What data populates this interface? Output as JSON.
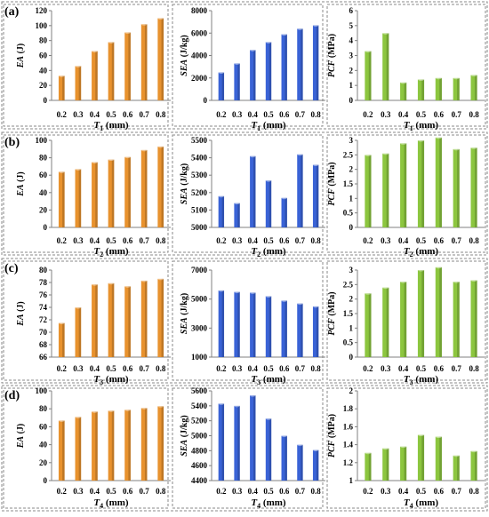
{
  "chart_data": {
    "type": "bar",
    "x_tick_labels": [
      "0.2",
      "0.3",
      "0.4",
      "0.5",
      "0.6",
      "0.7",
      "0.8"
    ],
    "units": {
      "mm": "(mm)",
      "ea": "(J)",
      "sea": "(J/kg)",
      "pcf": "(MPa)"
    },
    "colors": {
      "EA": "#e8922e",
      "SEA": "#3a63d6",
      "PCF": "#8cc63f"
    },
    "rows": [
      {
        "label": "(a)",
        "variable": "T",
        "subscript": "1",
        "charts": [
          {
            "type": "bar",
            "metric": "EA",
            "ylim": [
              0,
              120
            ],
            "ticks": [
              0,
              20,
              40,
              60,
              80,
              100,
              120
            ],
            "values": [
              33,
              46,
              66,
              78,
              91,
              102,
              110
            ]
          },
          {
            "type": "bar",
            "metric": "SEA",
            "ylim": [
              0,
              8000
            ],
            "ticks": [
              0,
              2000,
              4000,
              6000,
              8000
            ],
            "values": [
              2500,
              3300,
              4500,
              5200,
              5900,
              6400,
              6700
            ]
          },
          {
            "type": "bar",
            "metric": "PCF",
            "ylim": [
              0,
              6
            ],
            "ticks": [
              0,
              1,
              2,
              3,
              4,
              5,
              6
            ],
            "values": [
              3.3,
              4.5,
              1.2,
              1.4,
              1.5,
              1.5,
              1.7
            ]
          }
        ]
      },
      {
        "label": "(b)",
        "variable": "T",
        "subscript": "2",
        "charts": [
          {
            "type": "bar",
            "metric": "EA",
            "ylim": [
              0,
              100
            ],
            "ticks": [
              0,
              20,
              40,
              60,
              80,
              100
            ],
            "values": [
              64,
              67,
              75,
              78,
              81,
              89,
              93
            ]
          },
          {
            "type": "bar",
            "metric": "SEA",
            "ylim": [
              5000,
              5500
            ],
            "ticks": [
              5000,
              5100,
              5200,
              5300,
              5400,
              5500
            ],
            "values": [
              5180,
              5140,
              5410,
              5270,
              5170,
              5420,
              5360
            ]
          },
          {
            "type": "bar",
            "metric": "PCF",
            "ylim": [
              0,
              3
            ],
            "ticks": [
              0,
              0.5,
              1,
              1.5,
              2,
              2.5,
              3
            ],
            "tick_labels": [
              "0",
              "0.5",
              "1",
              "1.5",
              "2",
              "2.5",
              "3"
            ],
            "values": [
              2.5,
              2.55,
              2.9,
              3.0,
              3.1,
              2.7,
              2.75
            ]
          }
        ]
      },
      {
        "label": "(c)",
        "variable": "T",
        "subscript": "3",
        "charts": [
          {
            "type": "bar",
            "metric": "EA",
            "ylim": [
              66,
              80
            ],
            "ticks": [
              66,
              68,
              70,
              72,
              74,
              76,
              78,
              80
            ],
            "values": [
              71.5,
              74,
              77.7,
              77.9,
              77.4,
              78.3,
              78.6
            ]
          },
          {
            "type": "bar",
            "metric": "SEA",
            "ylim": [
              1000,
              7000
            ],
            "ticks": [
              1000,
              3000,
              5000,
              7000
            ],
            "values": [
              5600,
              5500,
              5450,
              5200,
              4900,
              4700,
              4500
            ]
          },
          {
            "type": "bar",
            "metric": "PCF",
            "ylim": [
              0,
              3
            ],
            "ticks": [
              0,
              0.5,
              1,
              1.5,
              2,
              2.5,
              3
            ],
            "tick_labels": [
              "0",
              "0.5",
              "1",
              "1.5",
              "2",
              "2.5",
              "3"
            ],
            "values": [
              2.2,
              2.4,
              2.6,
              3.0,
              3.1,
              2.6,
              2.65
            ]
          }
        ]
      },
      {
        "label": "(d)",
        "variable": "T",
        "subscript": "4",
        "charts": [
          {
            "type": "bar",
            "metric": "EA",
            "ylim": [
              0,
              100
            ],
            "ticks": [
              0,
              20,
              40,
              60,
              80,
              100
            ],
            "values": [
              67,
              71,
              77,
              78,
              79,
              81,
              83
            ]
          },
          {
            "type": "bar",
            "metric": "SEA",
            "ylim": [
              4400,
              5600
            ],
            "ticks": [
              4400,
              4600,
              4800,
              5000,
              5200,
              5400,
              5600
            ],
            "values": [
              5430,
              5400,
              5540,
              5230,
              5000,
              4880,
              4810
            ]
          },
          {
            "type": "bar",
            "metric": "PCF",
            "ylim": [
              1,
              2
            ],
            "ticks": [
              1,
              1.2,
              1.4,
              1.6,
              1.8,
              2
            ],
            "tick_labels": [
              "1",
              "1.2",
              "1.4",
              "1.6",
              "1.8",
              "2"
            ],
            "values": [
              1.31,
              1.36,
              1.38,
              1.51,
              1.49,
              1.28,
              1.33
            ]
          }
        ]
      }
    ]
  }
}
